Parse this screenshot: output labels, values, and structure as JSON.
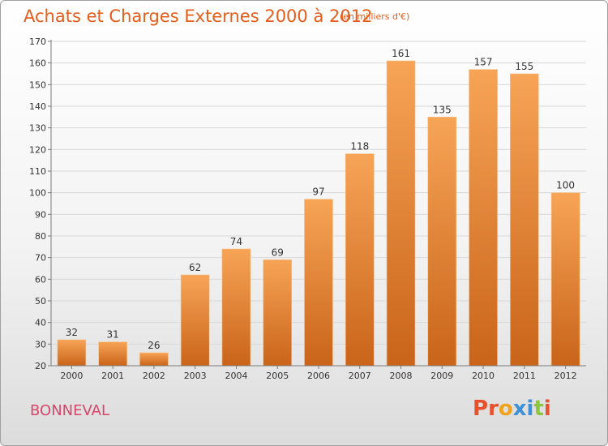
{
  "header": {
    "title": "Achats et Charges Externes 2000 à 2012",
    "subtitle": "(en milliers d'€)"
  },
  "footer": {
    "commune": "BONNEVAL",
    "logo_letters": [
      "P",
      "r",
      "o",
      "x",
      "i",
      "t",
      "i"
    ],
    "logo_colors": [
      "#e8512b",
      "#e8512b",
      "#f2a31e",
      "#3d8fd6",
      "#3d8fd6",
      "#8cc63f",
      "#e8512b"
    ]
  },
  "colors": {
    "bar_top": "#f7a456",
    "bar_bottom": "#c9641a",
    "grid": "#d8d8d8",
    "axis": "#7a7a7a",
    "title": "#e65c1a",
    "commune": "#d8466a"
  },
  "chart_data": {
    "type": "bar",
    "categories": [
      "2000",
      "2001",
      "2002",
      "2003",
      "2004",
      "2005",
      "2006",
      "2007",
      "2008",
      "2009",
      "2010",
      "2011",
      "2012"
    ],
    "values": [
      32,
      31,
      26,
      62,
      74,
      69,
      97,
      118,
      161,
      135,
      157,
      155,
      100
    ],
    "ylim": [
      20,
      170
    ],
    "yticks": [
      20,
      30,
      40,
      50,
      60,
      70,
      80,
      90,
      100,
      110,
      120,
      130,
      140,
      150,
      160,
      170
    ],
    "grid": true,
    "data_labels": true
  }
}
